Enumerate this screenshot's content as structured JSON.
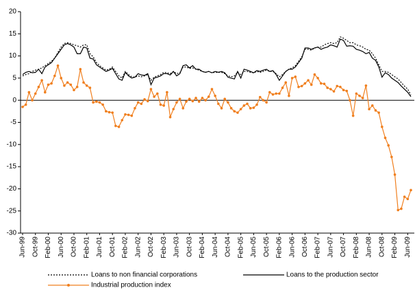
{
  "chart_data": {
    "type": "line",
    "categories": [
      "Jun-99",
      null,
      null,
      null,
      "Oct-99",
      null,
      null,
      null,
      "Feb-00",
      null,
      null,
      null,
      "Jun-00",
      null,
      null,
      null,
      "Oct-00",
      null,
      null,
      null,
      "Feb-01",
      null,
      null,
      null,
      "Jun-01",
      null,
      null,
      null,
      "Oct-01",
      null,
      null,
      null,
      "Feb-02",
      null,
      null,
      null,
      "Jun-02",
      null,
      null,
      null,
      "Oct-02",
      null,
      null,
      null,
      "Feb-03",
      null,
      null,
      null,
      "Jun-03",
      null,
      null,
      null,
      "Oct-03",
      null,
      null,
      null,
      "Feb-04",
      null,
      null,
      null,
      "Jun-04",
      null,
      null,
      null,
      "Oct-04",
      null,
      null,
      null,
      "Feb-05",
      null,
      null,
      null,
      "Jun-05",
      null,
      null,
      null,
      "Oct-05",
      null,
      null,
      null,
      "Feb-06",
      null,
      null,
      null,
      "Jun-06",
      null,
      null,
      null,
      "Oct-06",
      null,
      null,
      null,
      "Feb-07",
      null,
      null,
      null,
      "Jun-07",
      null,
      null,
      null,
      "Oct-07",
      null,
      null,
      null,
      "Feb-08",
      null,
      null,
      null,
      "Jun-08",
      null,
      null,
      null,
      "Oct-08",
      null,
      null,
      null,
      "Feb-09",
      null,
      null,
      null,
      "Jun-09",
      null
    ],
    "series": [
      {
        "name": "Loans to non financial corporations",
        "color": "#000000",
        "style": "dotted",
        "marker": false,
        "values": [
          5.5,
          5.8,
          6,
          6.5,
          6.8,
          7,
          7.3,
          7.8,
          8.3,
          8.8,
          9.5,
          10.8,
          12,
          12.8,
          13,
          12.8,
          12.5,
          12.3,
          12,
          12.5,
          12.5,
          10.5,
          9.8,
          8.5,
          7.8,
          7.3,
          6.8,
          7,
          7.5,
          6.5,
          5.5,
          5,
          6.5,
          5.8,
          5.3,
          5.2,
          5.5,
          5.3,
          5.5,
          5.8,
          4.5,
          5.2,
          5.5,
          5.8,
          6.3,
          6.2,
          6,
          6.5,
          6,
          6.2,
          7.5,
          7.5,
          7.2,
          7.3,
          7,
          6.8,
          6.5,
          6.3,
          6.5,
          6.2,
          6.3,
          6.3,
          6.3,
          6,
          5.5,
          5.3,
          5.5,
          6.3,
          5.8,
          6.5,
          6.5,
          6.3,
          6.2,
          6.5,
          6.3,
          6.5,
          6.8,
          6.5,
          6.5,
          6,
          5.3,
          5.8,
          6.5,
          7,
          7.3,
          7.8,
          8.8,
          9.8,
          11.5,
          11.5,
          11.3,
          11.8,
          12,
          12,
          12.5,
          12.8,
          13,
          12.8,
          13,
          14.3,
          14,
          13.5,
          13,
          13,
          12.5,
          12.3,
          12,
          11.5,
          11.3,
          10.5,
          9.5,
          8,
          6.5,
          6.5,
          6.3,
          5.8,
          5.3,
          4.8,
          4,
          3.2,
          2.5,
          1.2
        ]
      },
      {
        "name": "Loans to the production sector",
        "color": "#000000",
        "style": "solid",
        "marker": false,
        "values": [
          5.8,
          6.3,
          6.5,
          6.2,
          6.3,
          7,
          6,
          7.5,
          8,
          8.5,
          9.5,
          10.5,
          11.5,
          12.5,
          12.8,
          12.5,
          12,
          10.5,
          10.5,
          12,
          11.8,
          9.5,
          9.3,
          8,
          7.5,
          7,
          6.5,
          6.8,
          7.2,
          6,
          4.8,
          4.5,
          6.3,
          5.5,
          5,
          5.2,
          6,
          5.7,
          5.6,
          6,
          3.5,
          5,
          5.2,
          5.5,
          6,
          6,
          5.7,
          6.5,
          5.5,
          6,
          7.8,
          8,
          7.3,
          7.8,
          7,
          7,
          6.5,
          6.3,
          6.5,
          6.2,
          6.5,
          6.3,
          6.5,
          6.2,
          5.2,
          5,
          4.8,
          6.5,
          5,
          7,
          6.8,
          6.5,
          6.2,
          6.7,
          6.5,
          6.8,
          7,
          6.5,
          6.7,
          5.8,
          4.5,
          5.5,
          6.5,
          7,
          7,
          7.5,
          8.5,
          9.5,
          11.8,
          11.8,
          11.5,
          11.8,
          12,
          11.5,
          11.8,
          12,
          12.5,
          12.3,
          12,
          13.8,
          13.5,
          12.2,
          12.3,
          12.2,
          11.5,
          11.3,
          11,
          10.5,
          10.8,
          9.5,
          9,
          7.5,
          5.2,
          6.2,
          5.8,
          5,
          4.5,
          4,
          3.2,
          2.5,
          1.8,
          0.8
        ]
      },
      {
        "name": "Industrial production index",
        "color": "#f07f1e",
        "style": "solid",
        "marker": true,
        "values": [
          -1.5,
          -1,
          1.8,
          0,
          1.5,
          3,
          4.5,
          1.8,
          3.5,
          3.8,
          5.5,
          7.8,
          5,
          3.3,
          4,
          3.5,
          2.3,
          3,
          7,
          4,
          3.3,
          2.8,
          -0.5,
          -0.3,
          -0.5,
          -1,
          -2.5,
          -2.7,
          -2.8,
          -5.8,
          -6,
          -4.5,
          -3.2,
          -3.3,
          -3.5,
          -1.8,
          -0.5,
          -0.8,
          0.2,
          -0.2,
          2.5,
          0.8,
          1.5,
          -1,
          -1.2,
          1.8,
          -3.8,
          -2,
          -0.5,
          0.3,
          -1.8,
          -0.3,
          0.3,
          -0.2,
          0.5,
          -0.3,
          0.5,
          0,
          0.8,
          2.5,
          1,
          -0.8,
          -1.8,
          0.3,
          -0.5,
          -1.8,
          -2.5,
          -2.8,
          -2,
          -1.2,
          -0.8,
          -1.8,
          -1.7,
          -1,
          0.7,
          0,
          -0.5,
          1.8,
          1.3,
          1.5,
          1.5,
          2.8,
          4,
          1,
          5,
          5.3,
          3,
          3.2,
          3.8,
          4.5,
          3.5,
          5.8,
          5,
          3.8,
          3.7,
          2.8,
          2.5,
          2,
          3.2,
          3,
          2.3,
          2.1,
          0,
          -3.5,
          1.5,
          1,
          0.5,
          3.3,
          -2,
          -1.2,
          -2.3,
          -2.8,
          -6,
          -8.5,
          -10.2,
          -12.8,
          -16.8,
          -24.8,
          -24.5,
          -21.8,
          -22.3,
          -20.3
        ]
      }
    ],
    "ylim": [
      -30,
      20
    ],
    "yticks": [
      -30,
      -25,
      -20,
      -15,
      -10,
      -5,
      0,
      5,
      10,
      15,
      20
    ],
    "grid": false
  }
}
